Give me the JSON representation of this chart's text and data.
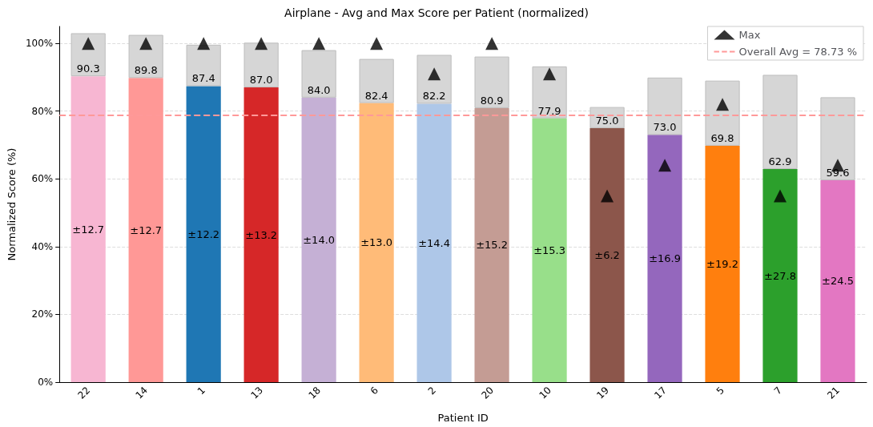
{
  "chart_data": {
    "type": "bar",
    "title": "Airplane - Avg and Max Score per Patient (normalized)",
    "xlabel": "Patient ID",
    "ylabel": "Normalized Score (%)",
    "categories": [
      "22",
      "14",
      "1",
      "13",
      "18",
      "6",
      "2",
      "20",
      "10",
      "19",
      "17",
      "5",
      "7",
      "21"
    ],
    "stacked": true,
    "series": [
      {
        "values": [
          90.3,
          89.8,
          87.4,
          87.0,
          84.0,
          82.4,
          82.2,
          80.9,
          77.9,
          75.0,
          73.0,
          69.8,
          62.9,
          59.6
        ],
        "colors": [
          "#f7b6d2",
          "#ff9896",
          "#1f77b4",
          "#d62728",
          "#c5b0d5",
          "#ffbb78",
          "#aec7e8",
          "#c49c94",
          "#98df8a",
          "#8c564b",
          "#9467bd",
          "#ff7f0e",
          "#2ca02c",
          "#e377c2"
        ],
        "value_labels": [
          "90.3",
          "89.8",
          "87.4",
          "87.0",
          "84.0",
          "82.4",
          "82.2",
          "80.9",
          "77.9",
          "75.0",
          "73.0",
          "69.8",
          "62.9",
          "59.6"
        ]
      },
      {
        "color": "#d6d6d6",
        "values": [
          12.7,
          12.7,
          12.2,
          13.2,
          14.0,
          13.0,
          14.4,
          15.2,
          15.3,
          6.2,
          16.9,
          19.2,
          27.8,
          24.5
        ]
      },
      {
        "name": "Max",
        "type": "scatter",
        "marker": "triangle",
        "color": "#000000",
        "x": [
          "22",
          "14",
          "1",
          "13",
          "18",
          "6",
          "2",
          "20",
          "10",
          "19",
          "17",
          "5",
          "7",
          "21"
        ],
        "values": [
          100,
          100,
          100,
          100,
          100,
          100,
          91,
          100,
          91,
          55,
          64,
          82,
          55,
          64
        ]
      }
    ],
    "annotations": [
      "±12.7",
      "±12.7",
      "±12.2",
      "±13.2",
      "±14.0",
      "±13.0",
      "±14.4",
      "±15.2",
      "±15.3",
      "±6.2",
      "±16.9",
      "±19.2",
      "±27.8",
      "±24.5"
    ],
    "ref_lines": [
      {
        "axis": "y",
        "value": 78.73,
        "label": "Overall Avg = 78.73 %",
        "color": "#ff9999",
        "line_style": "dashed"
      }
    ],
    "ylim": [
      0,
      105
    ],
    "yticks": [
      {
        "value": 0,
        "label": "0%"
      },
      {
        "value": 20,
        "label": "20%"
      },
      {
        "value": 40,
        "label": "40%"
      },
      {
        "value": 60,
        "label": "60%"
      },
      {
        "value": 80,
        "label": "80%"
      },
      {
        "value": 100,
        "label": "100%"
      }
    ],
    "grid": "y",
    "legend": "top right"
  }
}
